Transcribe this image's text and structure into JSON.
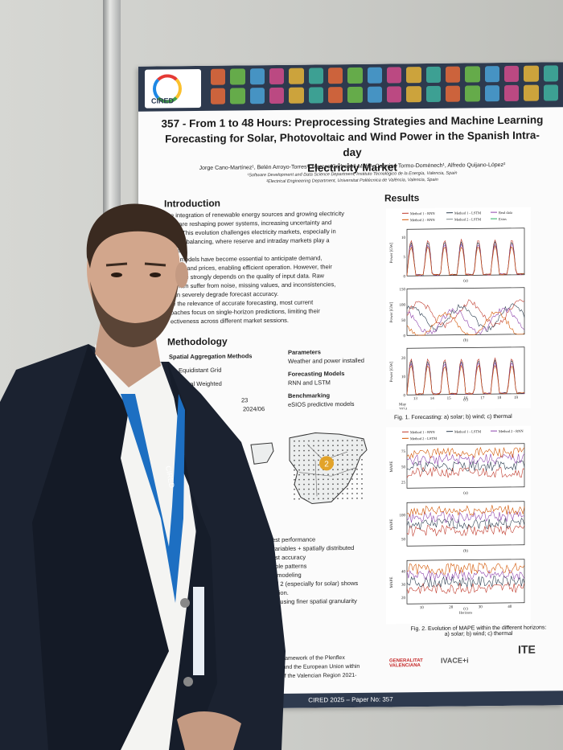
{
  "poster": {
    "paper_id_title": "357 - From 1 to 48 Hours: Preprocessing Strategies and Machine Learning Forecasting for Solar, Photovoltaic and Wind Power in the Spanish Intra-day Electricity Market",
    "title_line1": "357 - From 1 to 48 Hours: Preprocessing Strategies and Machine Learning",
    "title_line2": "Forecasting for Solar, Photovoltaic and Wind Power in the Spanish Intra-day",
    "title_line3": "Electricity Market",
    "authors": "Jorge Cano-Martínez¹, Belén Arroyo-Torres¹, Marcos Carbonell-Mafé¹, Caterina Tormo-Doménech¹, Alfredo Quijano-López²",
    "affiliation1": "¹Software Development and Data Science Department, Instituto Tecnológico de la Energía, Valencia, Spain",
    "affiliation2": "²Electrical Engineering Department, Universitat Politècnica de València, Valencia, Spain",
    "logo_text": "CIRED",
    "sections": {
      "introduction": "Introduction",
      "methodology": "Methodology",
      "results": "Results"
    },
    "intro_lines": [
      "e integration of renewable energy sources and growing electricity",
      "nd are reshaping power systems, increasing uncertainty and",
      "ility. This evolution challenges electricity markets, especially in",
      "-term balancing, where reserve and intraday markets play a",
      "role.",
      "ive models have become essential to anticipate demand,",
      "ation, and prices, enabling efficient operation. However, their",
      "mance strongly depends on the quality of input data. Raw",
      "s often suffer from noise, missing values, and inconsistencies,",
      "can severely degrade forecast accuracy.",
      "te the relevance of accurate forecasting, most current",
      "oaches focus on single-horizon predictions, limiting their",
      "ectiveness across different market sessions."
    ],
    "methodology": {
      "spatial_heading": "Spatial Aggregation Methods",
      "spatial_items": [
        "Equidistant Grid",
        "onal Weighted"
      ],
      "dates": [
        "23",
        "2024/06"
      ],
      "parameters_heading": "Parameters",
      "parameters_text": "Weather and power installed",
      "models_heading": "Forecasting Models",
      "models_text": "RNN and LSTM",
      "benchmark_heading": "Benchmarking",
      "benchmark_text": "eSIOS predictive models",
      "map_badge": "2"
    },
    "conclusion_lines": [
      "est performance",
      "variables + spatially distributed",
      "ast accuracy",
      "able patterns",
      "e modeling",
      "od 2 (especially for solar) shows",
      "ration.",
      "ng using finer spatial granularity"
    ],
    "ack_lines": [
      "e framework of the Plenflex",
      "+i and the European Union within",
      "e of the Valencian Region 2021-"
    ],
    "fig1_caption": "Fig. 1. Forecasting: a) solar; b) wind; c) thermal",
    "fig2_caption_line1": "Fig. 2. Evolution of MAPE within the different horizons:",
    "fig2_caption_line2": "a) solar; b) wind; c) thermal",
    "footer": "CIRED 2025 – Paper No: 357",
    "sponsors": [
      "GENERALITAT VALENCIANA",
      "IVACE+i",
      "ITE"
    ]
  },
  "chart_data": [
    {
      "type": "line",
      "title": "",
      "legend": [
        "Method 1 - RNN",
        "Method 1 - LSTM",
        "Real data",
        "Method 2 - RNN",
        "Method 2 - LSTM",
        "Esios"
      ],
      "panels": [
        {
          "label": "(a)",
          "ylabel": "Power [GW]",
          "yticks": [
            0,
            5,
            10
          ],
          "ylim": [
            0,
            12
          ]
        },
        {
          "label": "(b)",
          "ylabel": "Power [GW]",
          "yticks": [
            0,
            50,
            100,
            150
          ],
          "ylim": [
            0,
            150
          ]
        },
        {
          "label": "(c)",
          "ylabel": "Power [GW]",
          "yticks": [
            0,
            10,
            20
          ],
          "ylim": [
            0,
            25
          ]
        }
      ],
      "xticks": [
        "13",
        "14",
        "15",
        "16",
        "17",
        "18",
        "19"
      ],
      "xlabel_month": "May",
      "xlabel_year": "2024"
    },
    {
      "type": "line",
      "title": "",
      "legend": [
        "Method 1 - RNN",
        "Method 1 - LSTM",
        "Method 2 - RNN",
        "Method 2 - LSTM"
      ],
      "panels": [
        {
          "label": "(a)",
          "ylabel": "MAPE",
          "yticks": [
            25,
            50,
            75
          ],
          "ylim": [
            15,
            85
          ]
        },
        {
          "label": "(b)",
          "ylabel": "MAPE",
          "yticks": [
            50,
            100
          ],
          "ylim": [
            35,
            125
          ]
        },
        {
          "label": "(c)",
          "ylabel": "MAPE",
          "yticks": [
            20,
            30,
            40
          ],
          "ylim": [
            15,
            48
          ]
        }
      ],
      "xticks": [
        "10",
        "20",
        "30",
        "40"
      ],
      "xlabel": "Horizons"
    }
  ],
  "lanyard_text": "CIRED",
  "colors": {
    "banner": "#2e3a4e",
    "jacket": "#1b2230",
    "lanyard": "#1d6fc2"
  }
}
